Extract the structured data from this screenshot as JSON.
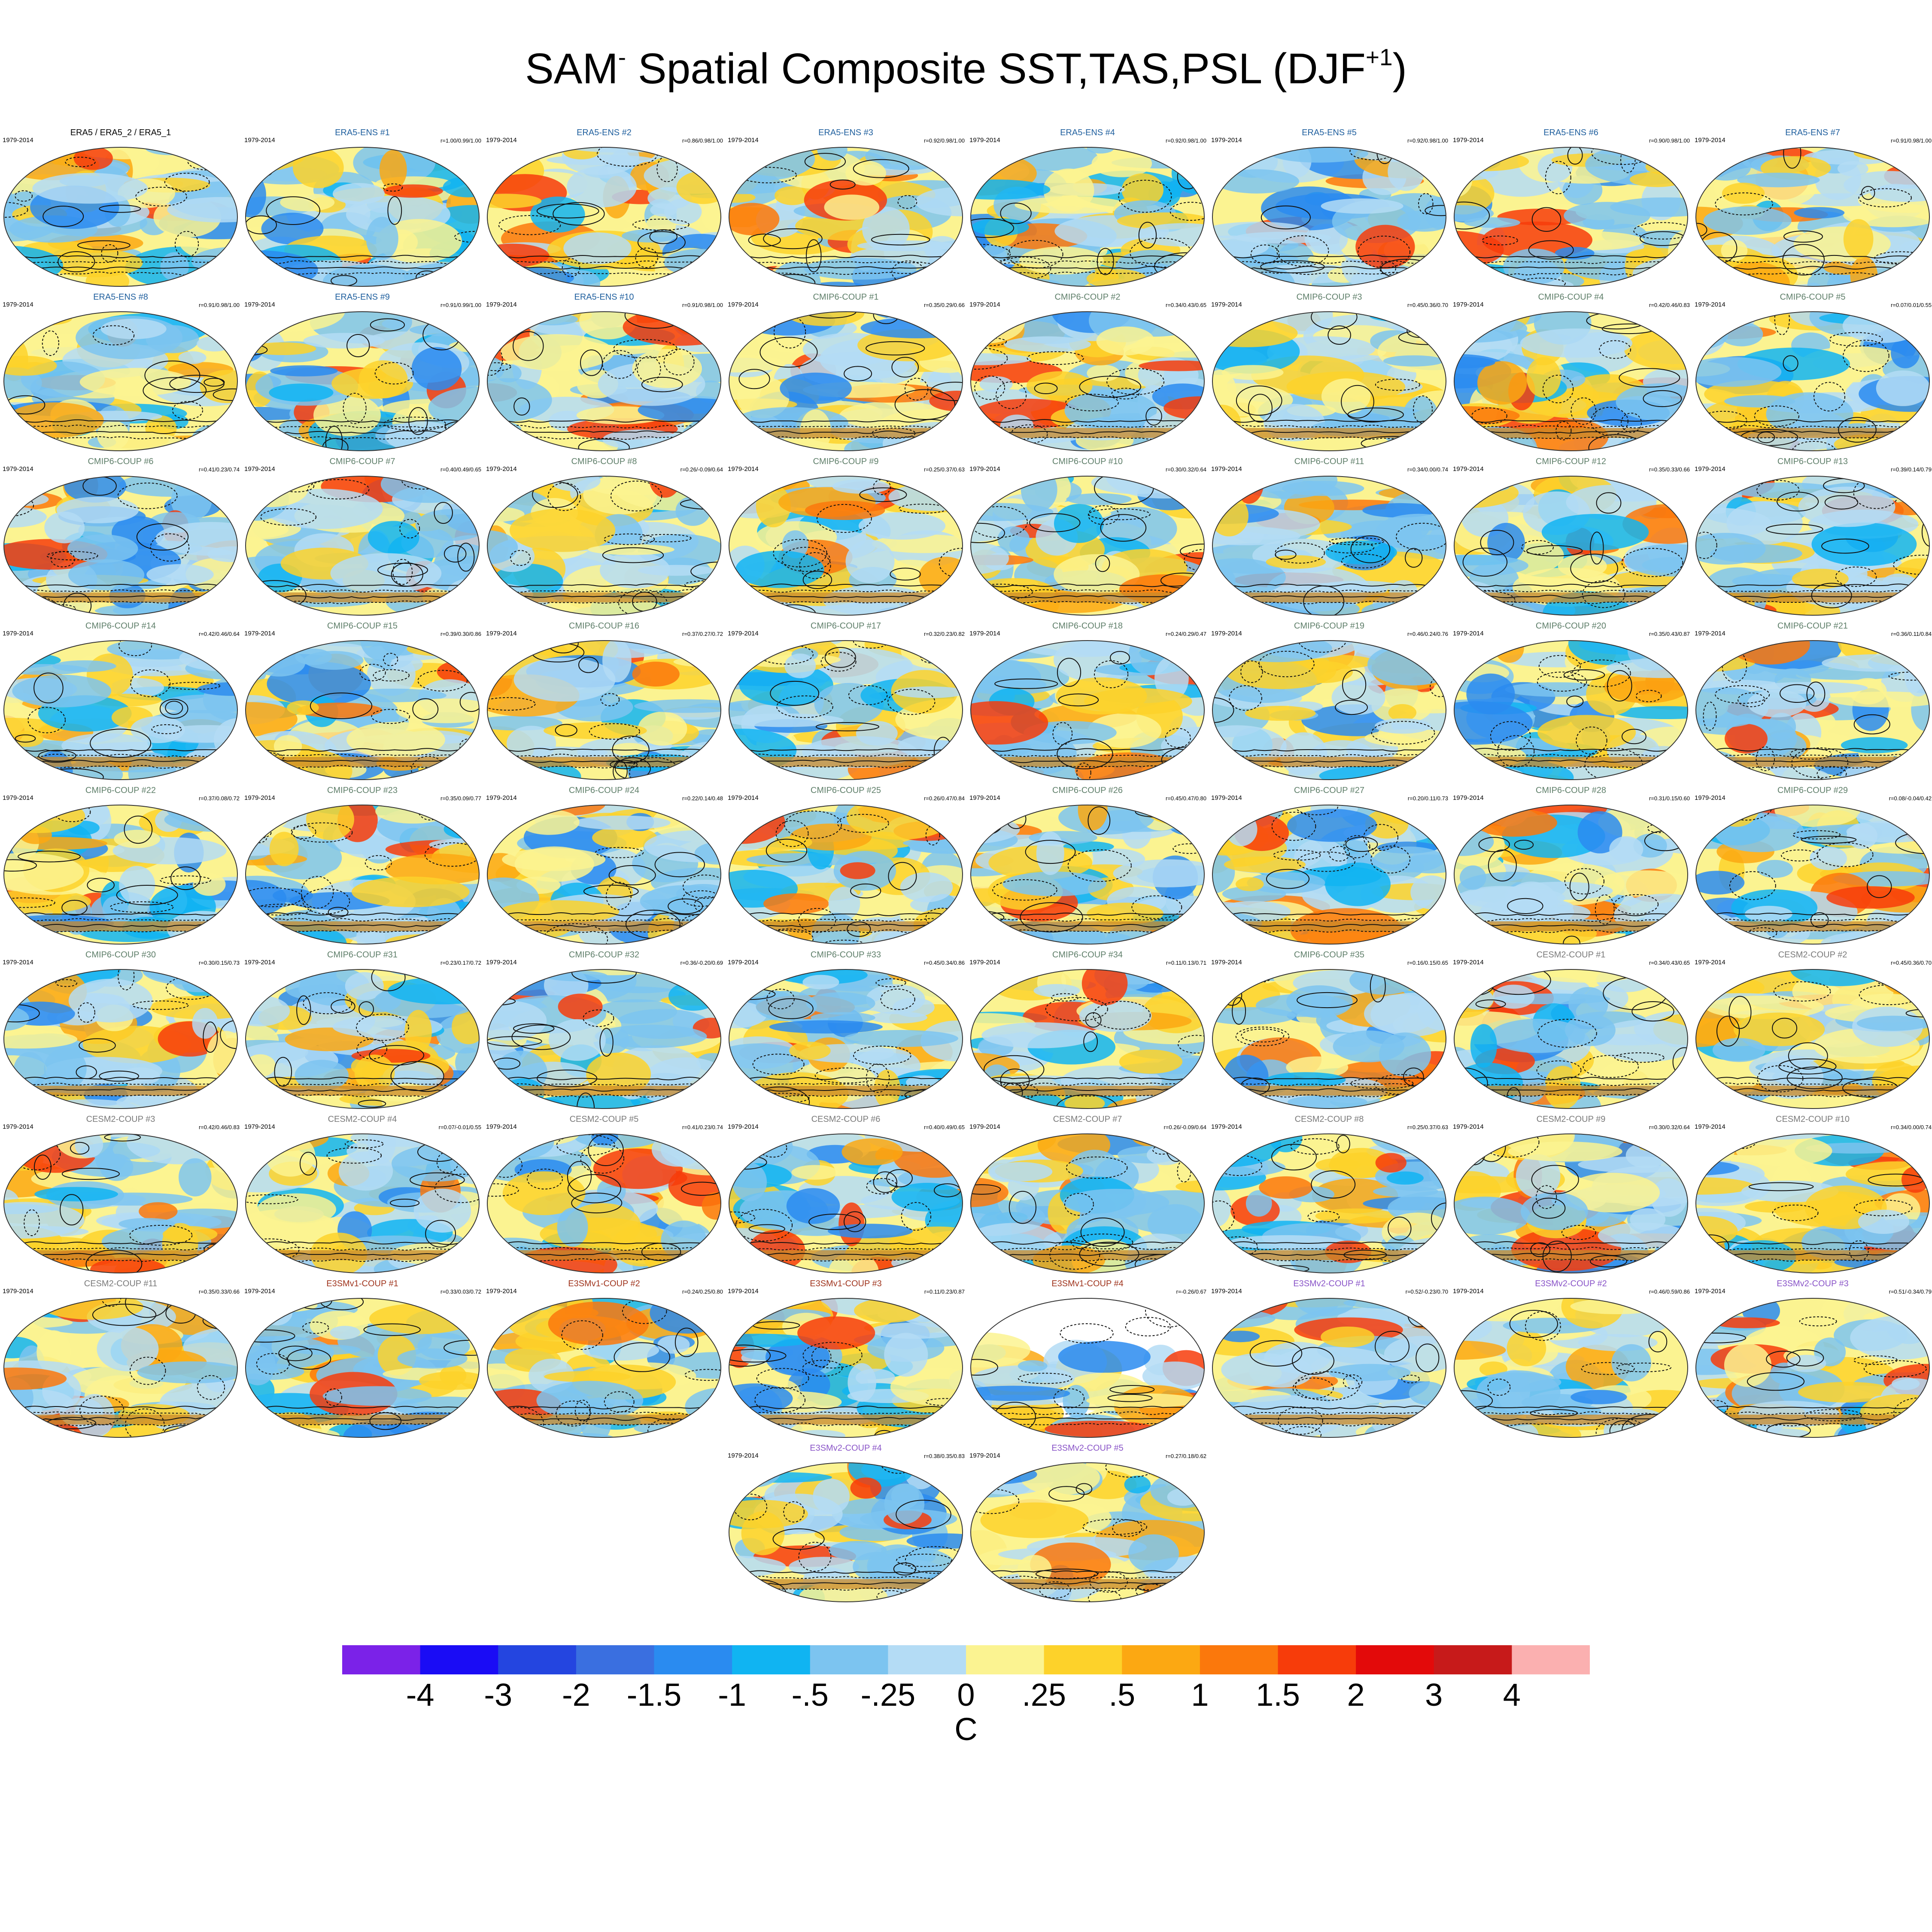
{
  "figure": {
    "title_main": "SAM",
    "title_sup_minus": "-",
    "title_rest": " Spatial Composite SST,TAS,PSL (DJF",
    "title_sup_season": "+1",
    "title_close": ")"
  },
  "colors": {
    "obs": "#000000",
    "era5_ens": "#1f5f9e",
    "cmip6": "#5f7f6a",
    "cesm2": "#7a7a7a",
    "e3smv1": "#a0351e",
    "e3smv2": "#8a55c8"
  },
  "chart_data": {
    "type": "heatmap",
    "variable": "SST,TAS,PSL composite",
    "period": "1979-2014",
    "panels": [
      {
        "title": "ERA5 / ERA5_2 / ERA5_1",
        "group": "obs",
        "period": "1979-2014",
        "stats": ""
      },
      {
        "title": "ERA5-ENS   #1",
        "group": "era5_ens",
        "period": "1979-2014",
        "stats": "r=1.00/0.99/1.00"
      },
      {
        "title": "ERA5-ENS   #2",
        "group": "era5_ens",
        "period": "1979-2014",
        "stats": "r=0.86/0.98/1.00"
      },
      {
        "title": "ERA5-ENS   #3",
        "group": "era5_ens",
        "period": "1979-2014",
        "stats": "r=0.92/0.98/1.00"
      },
      {
        "title": "ERA5-ENS   #4",
        "group": "era5_ens",
        "period": "1979-2014",
        "stats": "r=0.92/0.98/1.00"
      },
      {
        "title": "ERA5-ENS   #5",
        "group": "era5_ens",
        "period": "1979-2014",
        "stats": "r=0.92/0.98/1.00"
      },
      {
        "title": "ERA5-ENS   #6",
        "group": "era5_ens",
        "period": "1979-2014",
        "stats": "r=0.90/0.98/1.00"
      },
      {
        "title": "ERA5-ENS   #7",
        "group": "era5_ens",
        "period": "1979-2014",
        "stats": "r=0.91/0.98/1.00"
      },
      {
        "title": "ERA5-ENS   #8",
        "group": "era5_ens",
        "period": "1979-2014",
        "stats": "r=0.91/0.98/1.00"
      },
      {
        "title": "ERA5-ENS   #9",
        "group": "era5_ens",
        "period": "1979-2014",
        "stats": "r=0.91/0.99/1.00"
      },
      {
        "title": "ERA5-ENS   #10",
        "group": "era5_ens",
        "period": "1979-2014",
        "stats": "r=0.91/0.98/1.00"
      },
      {
        "title": "CMIP6-COUP  #1",
        "group": "cmip6",
        "period": "1979-2014",
        "stats": "r=0.35/0.29/0.66"
      },
      {
        "title": "CMIP6-COUP  #2",
        "group": "cmip6",
        "period": "1979-2014",
        "stats": "r=0.34/0.43/0.65"
      },
      {
        "title": "CMIP6-COUP  #3",
        "group": "cmip6",
        "period": "1979-2014",
        "stats": "r=0.45/0.36/0.70"
      },
      {
        "title": "CMIP6-COUP  #4",
        "group": "cmip6",
        "period": "1979-2014",
        "stats": "r=0.42/0.46/0.83"
      },
      {
        "title": "CMIP6-COUP  #5",
        "group": "cmip6",
        "period": "1979-2014",
        "stats": "r=0.07/0.01/0.55"
      },
      {
        "title": "CMIP6-COUP  #6",
        "group": "cmip6",
        "period": "1979-2014",
        "stats": "r=0.41/0.23/0.74"
      },
      {
        "title": "CMIP6-COUP  #7",
        "group": "cmip6",
        "period": "1979-2014",
        "stats": "r=0.40/0.49/0.65"
      },
      {
        "title": "CMIP6-COUP  #8",
        "group": "cmip6",
        "period": "1979-2014",
        "stats": "r=0.26/-0.09/0.64"
      },
      {
        "title": "CMIP6-COUP  #9",
        "group": "cmip6",
        "period": "1979-2014",
        "stats": "r=0.25/0.37/0.63"
      },
      {
        "title": "CMIP6-COUP  #10",
        "group": "cmip6",
        "period": "1979-2014",
        "stats": "r=0.30/0.32/0.64"
      },
      {
        "title": "CMIP6-COUP  #11",
        "group": "cmip6",
        "period": "1979-2014",
        "stats": "r=0.34/0.00/0.74"
      },
      {
        "title": "CMIP6-COUP  #12",
        "group": "cmip6",
        "period": "1979-2014",
        "stats": "r=0.35/0.33/0.66"
      },
      {
        "title": "CMIP6-COUP  #13",
        "group": "cmip6",
        "period": "1979-2014",
        "stats": "r=0.39/0.14/0.79"
      },
      {
        "title": "CMIP6-COUP  #14",
        "group": "cmip6",
        "period": "1979-2014",
        "stats": "r=0.42/0.46/0.64"
      },
      {
        "title": "CMIP6-COUP  #15",
        "group": "cmip6",
        "period": "1979-2014",
        "stats": "r=0.39/0.30/0.86"
      },
      {
        "title": "CMIP6-COUP  #16",
        "group": "cmip6",
        "period": "1979-2014",
        "stats": "r=0.37/0.27/0.72"
      },
      {
        "title": "CMIP6-COUP  #17",
        "group": "cmip6",
        "period": "1979-2014",
        "stats": "r=0.32/0.23/0.82"
      },
      {
        "title": "CMIP6-COUP  #18",
        "group": "cmip6",
        "period": "1979-2014",
        "stats": "r=0.24/0.29/0.47"
      },
      {
        "title": "CMIP6-COUP  #19",
        "group": "cmip6",
        "period": "1979-2014",
        "stats": "r=0.46/0.24/0.76"
      },
      {
        "title": "CMIP6-COUP  #20",
        "group": "cmip6",
        "period": "1979-2014",
        "stats": "r=0.35/0.43/0.87"
      },
      {
        "title": "CMIP6-COUP  #21",
        "group": "cmip6",
        "period": "1979-2014",
        "stats": "r=0.36/0.11/0.84"
      },
      {
        "title": "CMIP6-COUP  #22",
        "group": "cmip6",
        "period": "1979-2014",
        "stats": "r=0.37/0.08/0.72"
      },
      {
        "title": "CMIP6-COUP  #23",
        "group": "cmip6",
        "period": "1979-2014",
        "stats": "r=0.35/0.09/0.77"
      },
      {
        "title": "CMIP6-COUP  #24",
        "group": "cmip6",
        "period": "1979-2014",
        "stats": "r=0.22/0.14/0.48"
      },
      {
        "title": "CMIP6-COUP  #25",
        "group": "cmip6",
        "period": "1979-2014",
        "stats": "r=0.26/0.47/0.84"
      },
      {
        "title": "CMIP6-COUP  #26",
        "group": "cmip6",
        "period": "1979-2014",
        "stats": "r=0.45/0.47/0.80"
      },
      {
        "title": "CMIP6-COUP  #27",
        "group": "cmip6",
        "period": "1979-2014",
        "stats": "r=0.20/0.11/0.73"
      },
      {
        "title": "CMIP6-COUP  #28",
        "group": "cmip6",
        "period": "1979-2014",
        "stats": "r=0.31/0.15/0.60"
      },
      {
        "title": "CMIP6-COUP  #29",
        "group": "cmip6",
        "period": "1979-2014",
        "stats": "r=0.08/-0.04/0.42"
      },
      {
        "title": "CMIP6-COUP  #30",
        "group": "cmip6",
        "period": "1979-2014",
        "stats": "r=0.30/0.15/0.73"
      },
      {
        "title": "CMIP6-COUP  #31",
        "group": "cmip6",
        "period": "1979-2014",
        "stats": "r=0.23/0.17/0.72"
      },
      {
        "title": "CMIP6-COUP  #32",
        "group": "cmip6",
        "period": "1979-2014",
        "stats": "r=0.36/-0.20/0.69"
      },
      {
        "title": "CMIP6-COUP  #33",
        "group": "cmip6",
        "period": "1979-2014",
        "stats": "r=0.45/0.34/0.86"
      },
      {
        "title": "CMIP6-COUP  #34",
        "group": "cmip6",
        "period": "1979-2014",
        "stats": "r=0.11/0.13/0.71"
      },
      {
        "title": "CMIP6-COUP  #35",
        "group": "cmip6",
        "period": "1979-2014",
        "stats": "r=0.16/0.15/0.65"
      },
      {
        "title": "CESM2-COUP  #1",
        "group": "cesm2",
        "period": "1979-2014",
        "stats": "r=0.34/0.43/0.65"
      },
      {
        "title": "CESM2-COUP  #2",
        "group": "cesm2",
        "period": "1979-2014",
        "stats": "r=0.45/0.36/0.70"
      },
      {
        "title": "CESM2-COUP  #3",
        "group": "cesm2",
        "period": "1979-2014",
        "stats": "r=0.42/0.46/0.83"
      },
      {
        "title": "CESM2-COUP  #4",
        "group": "cesm2",
        "period": "1979-2014",
        "stats": "r=0.07/-0.01/0.55"
      },
      {
        "title": "CESM2-COUP  #5",
        "group": "cesm2",
        "period": "1979-2014",
        "stats": "r=0.41/0.23/0.74"
      },
      {
        "title": "CESM2-COUP  #6",
        "group": "cesm2",
        "period": "1979-2014",
        "stats": "r=0.40/0.49/0.65"
      },
      {
        "title": "CESM2-COUP  #7",
        "group": "cesm2",
        "period": "1979-2014",
        "stats": "r=0.26/-0.09/0.64"
      },
      {
        "title": "CESM2-COUP  #8",
        "group": "cesm2",
        "period": "1979-2014",
        "stats": "r=0.25/0.37/0.63"
      },
      {
        "title": "CESM2-COUP  #9",
        "group": "cesm2",
        "period": "1979-2014",
        "stats": "r=0.30/0.32/0.64"
      },
      {
        "title": "CESM2-COUP  #10",
        "group": "cesm2",
        "period": "1979-2014",
        "stats": "r=0.34/0.00/0.74"
      },
      {
        "title": "CESM2-COUP  #11",
        "group": "cesm2",
        "period": "1979-2014",
        "stats": "r=0.35/0.33/0.66"
      },
      {
        "title": "E3SMv1-COUP #1",
        "group": "e3smv1",
        "period": "1979-2014",
        "stats": "r=0.33/0.03/0.72"
      },
      {
        "title": "E3SMv1-COUP #2",
        "group": "e3smv1",
        "period": "1979-2014",
        "stats": "r=0.24/0.25/0.80"
      },
      {
        "title": "E3SMv1-COUP #3",
        "group": "e3smv1",
        "period": "1979-2014",
        "stats": "r=0.11/0.23/0.87"
      },
      {
        "title": "E3SMv1-COUP #4",
        "group": "e3smv1",
        "period": "",
        "stats": "r=-0.26/0.67",
        "partial": true
      },
      {
        "title": "E3SMv2-COUP #1",
        "group": "e3smv2",
        "period": "1979-2014",
        "stats": "r=0.52/-0.23/0.70"
      },
      {
        "title": "E3SMv2-COUP #2",
        "group": "e3smv2",
        "period": "1979-2014",
        "stats": "r=0.46/0.59/0.86"
      },
      {
        "title": "E3SMv2-COUP #3",
        "group": "e3smv2",
        "period": "1979-2014",
        "stats": "r=0.51/-0.34/0.79"
      },
      {
        "title": "E3SMv2-COUP #4",
        "group": "e3smv2",
        "period": "1979-2014",
        "stats": "r=0.38/0.35/0.83"
      },
      {
        "title": "E3SMv2-COUP #5",
        "group": "e3smv2",
        "period": "1979-2014",
        "stats": "r=0.27/0.18/0.62"
      }
    ],
    "colorbar": {
      "units": "C",
      "labels": [
        "-4",
        "-3",
        "-2",
        "-1.5",
        "-1",
        "-.5",
        "-.25",
        "0",
        ".25",
        ".5",
        "1",
        "1.5",
        "2",
        "3",
        "4"
      ],
      "colors": [
        "#7b22e8",
        "#1a0cf5",
        "#2445e0",
        "#3a6fe0",
        "#2a8bf0",
        "#10b4f2",
        "#7cc4f0",
        "#b4dcf5",
        "#fbf391",
        "#fdd22a",
        "#fca812",
        "#fb780c",
        "#f73c0a",
        "#e30a0a",
        "#c71a1a",
        "#fbb0b0"
      ]
    }
  }
}
